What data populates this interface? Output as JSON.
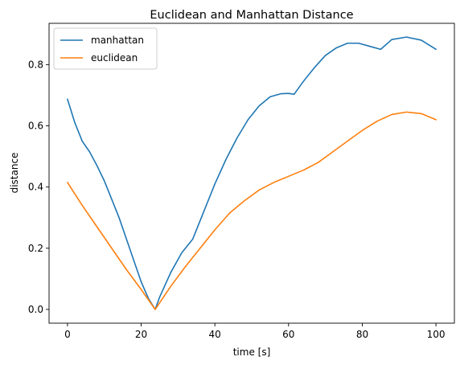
{
  "chart_data": {
    "type": "line",
    "title": "Euclidean and Manhattan Distance",
    "xlabel": "time [s]",
    "ylabel": "distance",
    "xlim": [
      -5,
      105
    ],
    "ylim": [
      -0.045,
      0.935
    ],
    "xticks": [
      0,
      20,
      40,
      60,
      80,
      100
    ],
    "yticks": [
      0.0,
      0.2,
      0.4,
      0.6,
      0.8
    ],
    "xtick_labels": [
      "0",
      "20",
      "40",
      "60",
      "80",
      "100"
    ],
    "ytick_labels": [
      "0.0",
      "0.2",
      "0.4",
      "0.6",
      "0.8"
    ],
    "legend_position": "top-left",
    "grid": false,
    "series": [
      {
        "name": "manhattan",
        "color": "#1f77b4",
        "x": [
          0,
          2,
          4,
          6,
          8,
          10,
          12,
          14,
          16,
          18,
          20,
          22,
          23.8,
          25,
          28,
          31,
          34,
          37,
          40,
          43,
          46,
          49,
          52,
          55,
          58,
          60,
          61.5,
          64,
          67,
          70,
          73,
          76,
          79,
          82,
          85,
          88,
          92,
          96,
          100
        ],
        "y": [
          0.687,
          0.61,
          0.55,
          0.515,
          0.47,
          0.42,
          0.36,
          0.3,
          0.23,
          0.16,
          0.09,
          0.035,
          0.0,
          0.04,
          0.12,
          0.185,
          0.23,
          0.32,
          0.41,
          0.49,
          0.56,
          0.62,
          0.665,
          0.695,
          0.705,
          0.706,
          0.703,
          0.745,
          0.79,
          0.83,
          0.855,
          0.87,
          0.87,
          0.86,
          0.85,
          0.882,
          0.89,
          0.88,
          0.85
        ]
      },
      {
        "name": "euclidean",
        "color": "#ff7f0e",
        "x": [
          0,
          4,
          8,
          12,
          16,
          20,
          23.8,
          28,
          32,
          36,
          40,
          44,
          48,
          52,
          56,
          60,
          64,
          68,
          72,
          76,
          80,
          84,
          88,
          92,
          96,
          100
        ],
        "y": [
          0.415,
          0.34,
          0.27,
          0.2,
          0.13,
          0.065,
          0.0,
          0.075,
          0.14,
          0.2,
          0.26,
          0.315,
          0.355,
          0.39,
          0.415,
          0.435,
          0.455,
          0.48,
          0.515,
          0.55,
          0.585,
          0.615,
          0.637,
          0.645,
          0.64,
          0.62
        ]
      }
    ]
  }
}
